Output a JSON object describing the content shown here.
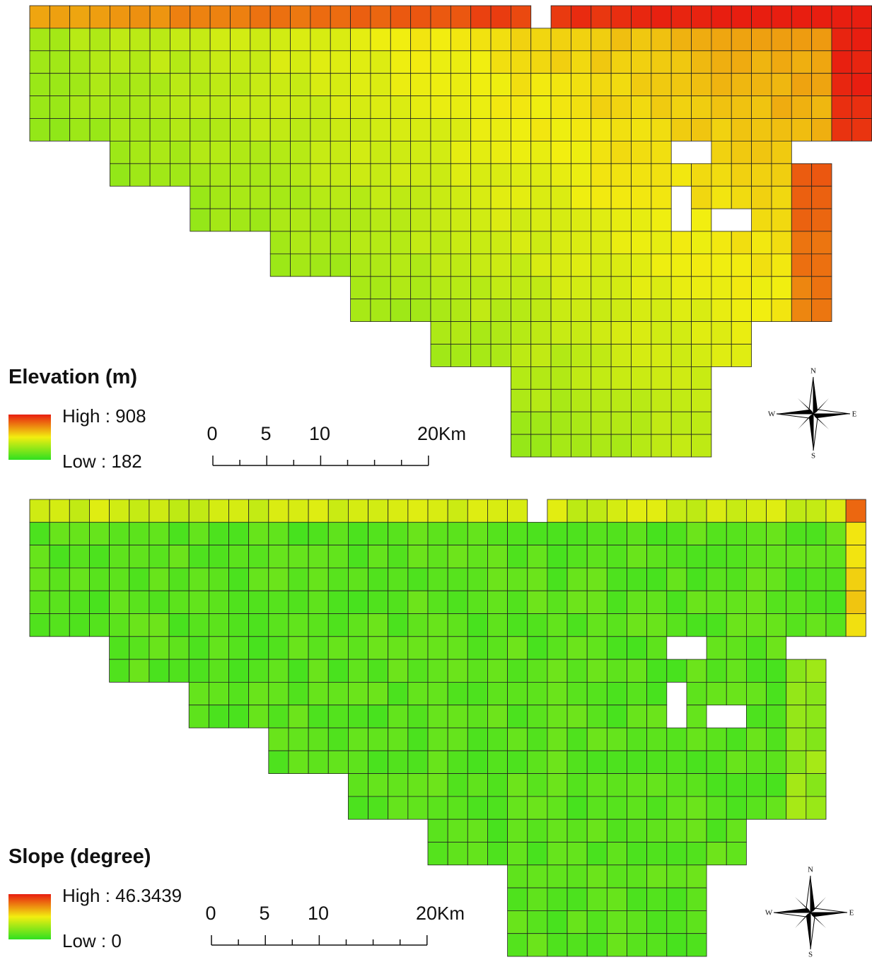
{
  "maps": [
    {
      "legend": {
        "title": "Elevation (m)",
        "high": "High : 908",
        "low": "Low : 182"
      },
      "scale_bar": {
        "labels": [
          "0",
          "5",
          "10",
          "20"
        ],
        "unit": "Km"
      },
      "compass": {
        "n": "N",
        "s": "S",
        "e": "E",
        "w": "W"
      }
    },
    {
      "legend": {
        "title": "Slope (degree)",
        "high": "High : 46.3439",
        "low": "Low : 0"
      },
      "scale_bar": {
        "labels": [
          "0",
          "5",
          "10",
          "20"
        ],
        "unit": "Km"
      },
      "compass": {
        "n": "N",
        "s": "S",
        "e": "E",
        "w": "W"
      }
    }
  ]
}
